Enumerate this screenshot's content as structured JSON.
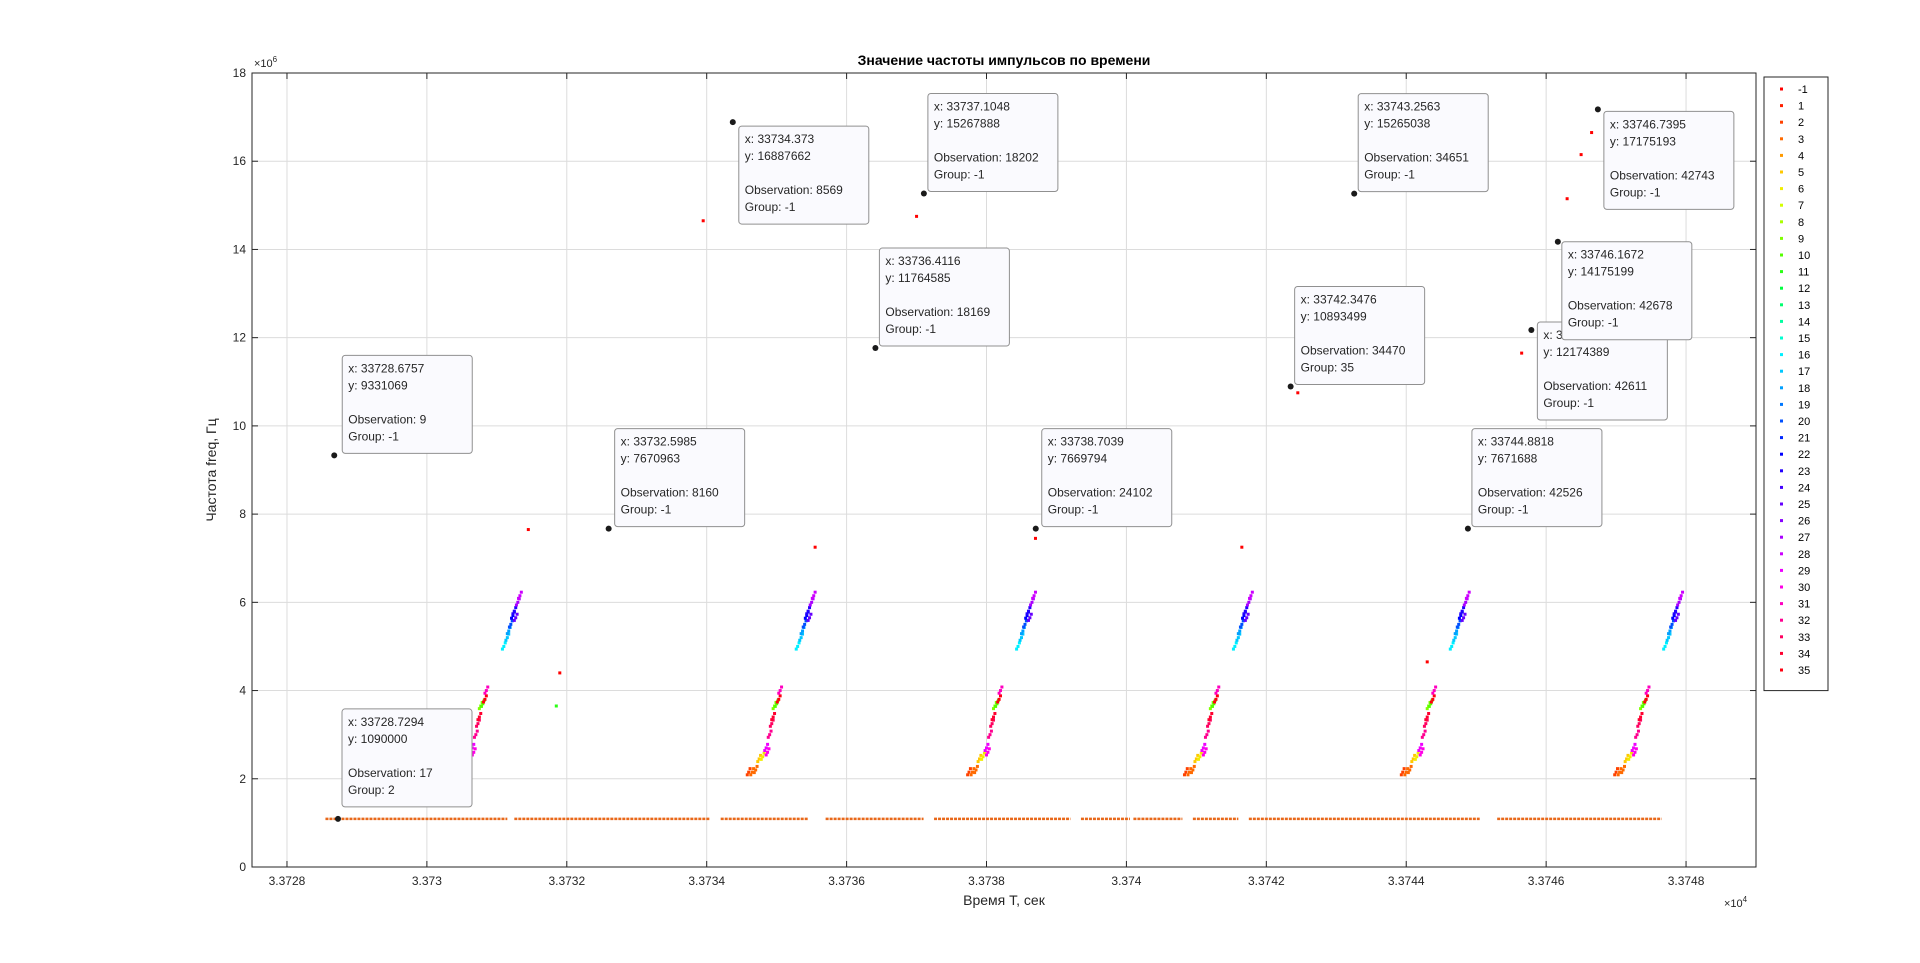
{
  "chart_data": {
    "type": "scatter",
    "title": "Значение частоты импульсов по времени",
    "xlabel": "Время T, сек",
    "ylabel": "Частота freq, Гц",
    "x_exponent_label": "×10",
    "x_exponent": "4",
    "y_exponent_label": "×10",
    "y_exponent": "6",
    "xlim": [
      33727.5,
      33749.0
    ],
    "ylim": [
      0,
      18000000
    ],
    "x_ticks": [
      33728,
      33730,
      33732,
      33734,
      33736,
      33738,
      33740,
      33742,
      33744,
      33746,
      33748
    ],
    "x_tick_labels": [
      "3.3728",
      "3.373",
      "3.3732",
      "3.3734",
      "3.3736",
      "3.3738",
      "3.374",
      "3.3742",
      "3.3744",
      "3.3746",
      "3.3748"
    ],
    "y_ticks": [
      0,
      2000000,
      4000000,
      6000000,
      8000000,
      10000000,
      12000000,
      14000000,
      16000000,
      18000000
    ],
    "y_tick_labels": [
      "0",
      "2",
      "4",
      "6",
      "8",
      "10",
      "12",
      "14",
      "16",
      "18"
    ],
    "grid": true,
    "legend_placement": "outside-right",
    "legend_entries": [
      "-1",
      "1",
      "2",
      "3",
      "4",
      "5",
      "6",
      "7",
      "8",
      "9",
      "10",
      "11",
      "12",
      "13",
      "14",
      "15",
      "16",
      "17",
      "18",
      "19",
      "20",
      "21",
      "22",
      "23",
      "24",
      "25",
      "26",
      "27",
      "28",
      "29",
      "30",
      "31",
      "32",
      "33",
      "34",
      "35"
    ],
    "legend_colors": [
      "#ff0000",
      "#ff2000",
      "#ff4200",
      "#ff6a00",
      "#ff9a00",
      "#ffc800",
      "#f0ee00",
      "#d4ff00",
      "#aaff00",
      "#7fff00",
      "#55ff00",
      "#2bff15",
      "#00ff40",
      "#00ff70",
      "#00ffa0",
      "#00ffd0",
      "#00f0ff",
      "#00c8ff",
      "#00a0ff",
      "#0078ff",
      "#0050ff",
      "#0028ff",
      "#0000ff",
      "#2200ff",
      "#4400ff",
      "#6600ff",
      "#8800ff",
      "#aa00ff",
      "#cc00ff",
      "#ee00ff",
      "#ff00e6",
      "#ff00c0",
      "#ff0090",
      "#ff0060",
      "#ff0030",
      "#ff0010"
    ],
    "baseline": {
      "y": 1090000,
      "x_start": 33728.55,
      "x_end": 33747.65,
      "color": "#e8681a",
      "gaps": [
        [
          33731.15,
          33731.25
        ],
        [
          33734.05,
          33734.2
        ],
        [
          33735.45,
          33735.7
        ],
        [
          33737.1,
          33737.25
        ],
        [
          33739.2,
          33739.35
        ],
        [
          33740.05,
          33740.1
        ],
        [
          33740.8,
          33740.95
        ],
        [
          33741.6,
          33741.75
        ],
        [
          33745.05,
          33745.3
        ]
      ]
    },
    "cycle_starts": [
      33730.55,
      33734.75,
      33737.9,
      33741.0,
      33744.1,
      33747.15
    ],
    "cycle_pattern": [
      {
        "dx": -0.15,
        "y": 2150000,
        "c": 2
      },
      {
        "dx": -0.1,
        "y": 2150000,
        "c": 3
      },
      {
        "dx": -0.05,
        "y": 2200000,
        "c": 3
      },
      {
        "dx": 0.0,
        "y": 2450000,
        "c": 5
      },
      {
        "dx": 0.05,
        "y": 2500000,
        "c": 6
      },
      {
        "dx": 0.1,
        "y": 2700000,
        "c": 29
      },
      {
        "dx": 0.12,
        "y": 2600000,
        "c": 30
      },
      {
        "dx": 0.15,
        "y": 3000000,
        "c": 32
      },
      {
        "dx": 0.18,
        "y": 3250000,
        "c": 33
      },
      {
        "dx": 0.2,
        "y": 3400000,
        "c": 34
      },
      {
        "dx": 0.22,
        "y": 3650000,
        "c": 9
      },
      {
        "dx": 0.25,
        "y": 3700000,
        "c": 10
      },
      {
        "dx": 0.28,
        "y": 3800000,
        "c": 35
      },
      {
        "dx": 0.3,
        "y": 4000000,
        "c": 31
      },
      {
        "dx": 0.55,
        "y": 5000000,
        "c": 16
      },
      {
        "dx": 0.6,
        "y": 5200000,
        "c": 17
      },
      {
        "dx": 0.62,
        "y": 5350000,
        "c": 18
      },
      {
        "dx": 0.65,
        "y": 5500000,
        "c": 20
      },
      {
        "dx": 0.68,
        "y": 5700000,
        "c": 22
      },
      {
        "dx": 0.7,
        "y": 5800000,
        "c": 23
      },
      {
        "dx": 0.72,
        "y": 5650000,
        "c": 25
      },
      {
        "dx": 0.75,
        "y": 6000000,
        "c": 27
      },
      {
        "dx": 0.78,
        "y": 6150000,
        "c": 28
      }
    ],
    "extra_points": [
      {
        "x": 33728.6757,
        "y": 9331069,
        "c": 0
      },
      {
        "x": 33728.7294,
        "y": 1090000,
        "c": 2
      },
      {
        "x": 33731.45,
        "y": 7650000,
        "c": 0
      },
      {
        "x": 33731.9,
        "y": 4400000,
        "c": 0
      },
      {
        "x": 33731.85,
        "y": 3650000,
        "c": 11
      },
      {
        "x": 33732.5985,
        "y": 7670963,
        "c": 0
      },
      {
        "x": 33733.95,
        "y": 14650000,
        "c": 0
      },
      {
        "x": 33734.373,
        "y": 16887662,
        "c": 0
      },
      {
        "x": 33735.55,
        "y": 7250000,
        "c": 0
      },
      {
        "x": 33736.4116,
        "y": 11764585,
        "c": 0
      },
      {
        "x": 33737.0,
        "y": 14750000,
        "c": 0
      },
      {
        "x": 33737.1048,
        "y": 15267888,
        "c": 0
      },
      {
        "x": 33738.7039,
        "y": 7669794,
        "c": 0
      },
      {
        "x": 33738.7,
        "y": 7450000,
        "c": 0
      },
      {
        "x": 33741.65,
        "y": 7250000,
        "c": 0
      },
      {
        "x": 33742.3476,
        "y": 10893499,
        "c": 35
      },
      {
        "x": 33742.45,
        "y": 10750000,
        "c": 0
      },
      {
        "x": 33743.2563,
        "y": 15265038,
        "c": 0
      },
      {
        "x": 33744.3,
        "y": 4650000,
        "c": 0
      },
      {
        "x": 33744.8818,
        "y": 7671688,
        "c": 0
      },
      {
        "x": 33745.7887,
        "y": 12174389,
        "c": 0
      },
      {
        "x": 33745.65,
        "y": 11650000,
        "c": 0
      },
      {
        "x": 33746.1672,
        "y": 14175199,
        "c": 0
      },
      {
        "x": 33746.3,
        "y": 15150000,
        "c": 0
      },
      {
        "x": 33746.5,
        "y": 16150000,
        "c": 0
      },
      {
        "x": 33746.65,
        "y": 16650000,
        "c": 0
      },
      {
        "x": 33746.7395,
        "y": 17175193,
        "c": 0
      }
    ],
    "datatips": [
      {
        "x": 33728.6757,
        "y": 9331069,
        "lines": [
          "x: 33728.6757",
          "y: 9331069",
          "",
          "Observation: 9",
          "Group: -1"
        ]
      },
      {
        "x": 33728.7294,
        "y": 1090000,
        "lines": [
          "x: 33728.7294",
          "y: 1090000",
          "",
          "Observation: 17",
          "Group: 2"
        ]
      },
      {
        "x": 33732.5985,
        "y": 7670963,
        "lines": [
          "x: 33732.5985",
          "y: 7670963",
          "",
          "Observation: 8160",
          "Group: -1"
        ]
      },
      {
        "x": 33734.373,
        "y": 16887662,
        "lines": [
          "x: 33734.373",
          "y: 16887662",
          "",
          "Observation: 8569",
          "Group: -1"
        ]
      },
      {
        "x": 33736.4116,
        "y": 11764585,
        "lines": [
          "x: 33736.4116",
          "y: 11764585",
          "",
          "Observation: 18169",
          "Group: -1"
        ]
      },
      {
        "x": 33737.1048,
        "y": 15267888,
        "lines": [
          "x: 33737.1048",
          "y: 15267888",
          "",
          "Observation: 18202",
          "Group: -1"
        ]
      },
      {
        "x": 33738.7039,
        "y": 7669794,
        "lines": [
          "x: 33738.7039",
          "y: 7669794",
          "",
          "Observation: 24102",
          "Group: -1"
        ]
      },
      {
        "x": 33742.3476,
        "y": 10893499,
        "lines": [
          "x: 33742.3476",
          "y: 10893499",
          "",
          "Observation: 34470",
          "Group: 35"
        ]
      },
      {
        "x": 33743.2563,
        "y": 15265038,
        "lines": [
          "x: 33743.2563",
          "y: 15265038",
          "",
          "Observation: 34651",
          "Group: -1"
        ]
      },
      {
        "x": 33744.8818,
        "y": 7671688,
        "lines": [
          "x: 33744.8818",
          "y: 7671688",
          "",
          "Observation: 42526",
          "Group: -1"
        ]
      },
      {
        "x": 33745.7887,
        "y": 12174389,
        "lines": [
          "x: 33745.7887",
          "y: 12174389",
          "",
          "Observation: 42611",
          "Group: -1"
        ]
      },
      {
        "x": 33746.1672,
        "y": 14175199,
        "lines": [
          "x: 33746.1672",
          "y: 14175199",
          "",
          "Observation: 42678",
          "Group: -1"
        ]
      },
      {
        "x": 33746.7395,
        "y": 17175193,
        "lines": [
          "x: 33746.7395",
          "y: 17175193",
          "",
          "Observation: 42743",
          "Group: -1"
        ]
      }
    ]
  }
}
